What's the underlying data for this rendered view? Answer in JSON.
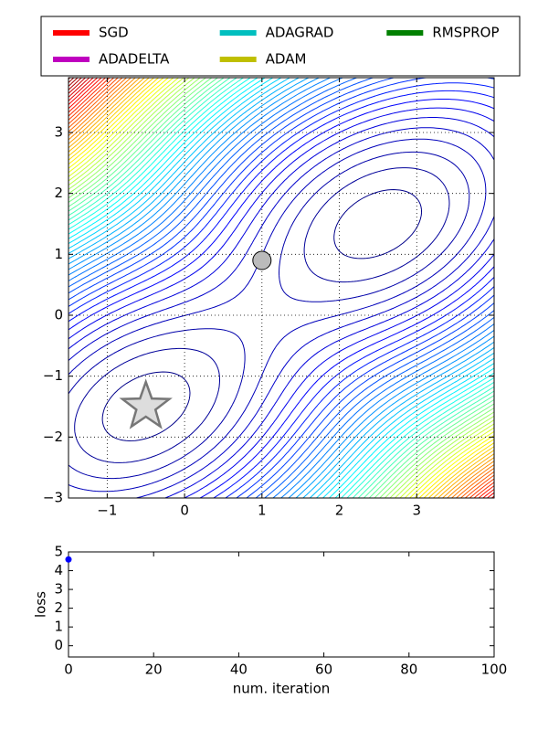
{
  "chart_data": [
    {
      "type": "contour",
      "xlim": [
        -1.5,
        4
      ],
      "ylim": [
        -3,
        3.9
      ],
      "xticks": [
        {
          "value": -1,
          "label": "−1"
        },
        0,
        1,
        2,
        3
      ],
      "yticks": [
        {
          "value": -3,
          "label": "−3"
        },
        {
          "value": -2,
          "label": "−2"
        },
        {
          "value": -1,
          "label": "−1"
        },
        0,
        1,
        2,
        3
      ],
      "grid": true,
      "colormap": "jet",
      "legend": "top",
      "legend_columns": 3,
      "series": [
        {
          "name": "SGD",
          "color": "#ff0000"
        },
        {
          "name": "ADAGRAD",
          "color": "#00bfbf"
        },
        {
          "name": "RMSPROP",
          "color": "#008000"
        },
        {
          "name": "ADADELTA",
          "color": "#bf00bf"
        },
        {
          "name": "ADAM",
          "color": "#bfbf00"
        }
      ],
      "points": [
        {
          "marker": "star",
          "x": -0.5,
          "y": -1.5,
          "color": "#dddddd"
        },
        {
          "marker": "circle",
          "x": 1,
          "y": 0.9,
          "color": "#bbbbbb"
        }
      ]
    },
    {
      "type": "line",
      "xlabel": "num. iteration",
      "ylabel": "loss",
      "x": [
        0
      ],
      "values": [
        4.6
      ],
      "color": "#0000ff",
      "xlim": [
        0,
        100
      ],
      "ylim": [
        -0.6,
        5
      ],
      "xticks": [
        0,
        20,
        40,
        60,
        80,
        100
      ],
      "yticks": [
        0,
        1,
        2,
        3,
        4,
        5
      ],
      "grid": false
    }
  ]
}
